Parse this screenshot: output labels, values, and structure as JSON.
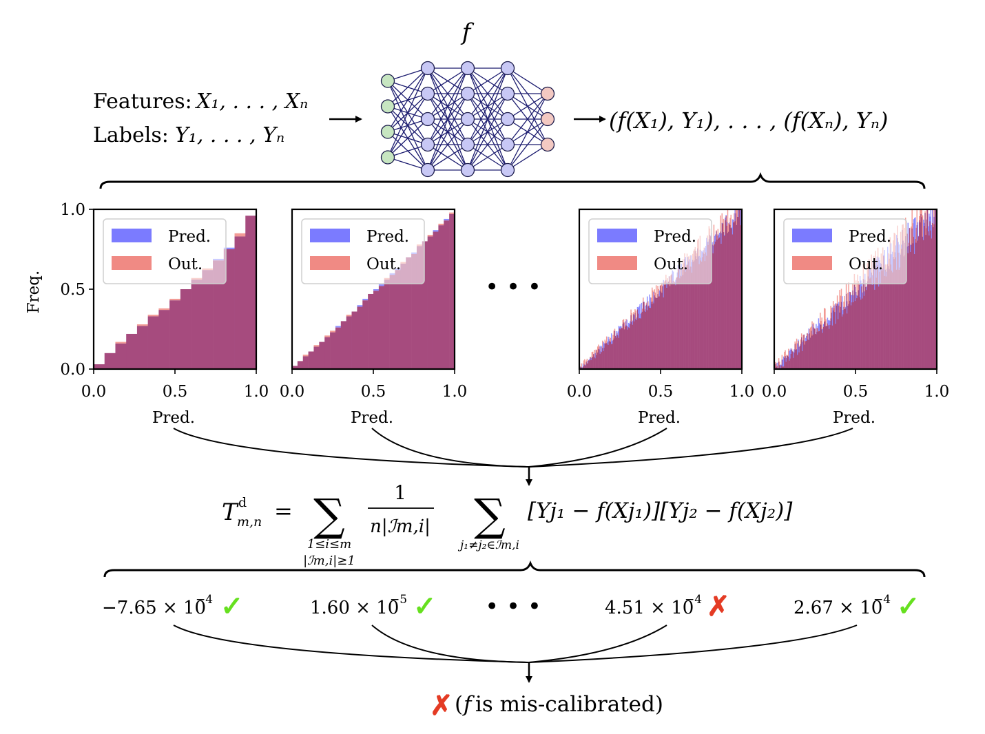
{
  "model_symbol": "f",
  "inputs": {
    "features_label": "Features:",
    "features_vars": "X₁, . . . , Xₙ",
    "labels_label": "Labels:",
    "labels_vars": "Y₁, . . . , Yₙ"
  },
  "outputs_text": "(f(X₁), Y₁), . . . , (f(Xₙ), Yₙ)",
  "ellipsis": "• • •",
  "network": {
    "layers": [
      4,
      5,
      5,
      5,
      3
    ],
    "colors": {
      "input": "#c7e6c1",
      "hidden": "#c8c8f5",
      "output": "#f3c9c2",
      "edge": "#1a1a6e"
    }
  },
  "colors": {
    "pred": "#7b7bff",
    "out": "#f08a84",
    "overlap": "#a64b7e",
    "check": "#66e01f",
    "cross": "#e43b24"
  },
  "chart_data": [
    {
      "type": "bar",
      "ylabel": "Freq.",
      "xlabel": "Pred.",
      "xlim": [
        0,
        1
      ],
      "ylim": [
        0,
        1
      ],
      "xticks": [
        "0.0",
        "0.5",
        "1.0"
      ],
      "yticks": [
        "0.0",
        "0.5",
        "1.0"
      ],
      "legend": [
        "Pred.",
        "Out."
      ],
      "bins": 15,
      "series": [
        {
          "name": "Pred.",
          "values": [
            0.03,
            0.1,
            0.16,
            0.22,
            0.27,
            0.33,
            0.37,
            0.43,
            0.5,
            0.56,
            0.62,
            0.69,
            0.76,
            0.83,
            0.96
          ]
        },
        {
          "name": "Out.",
          "values": [
            0.03,
            0.1,
            0.17,
            0.22,
            0.28,
            0.34,
            0.38,
            0.44,
            0.5,
            0.57,
            0.63,
            0.68,
            0.75,
            0.85,
            0.96
          ]
        }
      ]
    },
    {
      "type": "bar",
      "ylabel": "",
      "xlabel": "Pred.",
      "xlim": [
        0,
        1
      ],
      "ylim": [
        0,
        1
      ],
      "xticks": [
        "0.0",
        "0.5",
        "1.0"
      ],
      "yticks": [],
      "legend": [
        "Pred.",
        "Out."
      ],
      "bins": 30,
      "series": [
        {
          "name": "Pred.",
          "values": [
            0.02,
            0.05,
            0.08,
            0.11,
            0.14,
            0.17,
            0.2,
            0.23,
            0.27,
            0.3,
            0.33,
            0.36,
            0.4,
            0.44,
            0.47,
            0.5,
            0.53,
            0.56,
            0.6,
            0.63,
            0.66,
            0.7,
            0.73,
            0.77,
            0.8,
            0.83,
            0.87,
            0.9,
            0.94,
            0.97
          ]
        },
        {
          "name": "Out.",
          "values": [
            0.02,
            0.05,
            0.09,
            0.11,
            0.15,
            0.17,
            0.21,
            0.24,
            0.26,
            0.3,
            0.34,
            0.36,
            0.39,
            0.43,
            0.47,
            0.49,
            0.52,
            0.57,
            0.59,
            0.62,
            0.67,
            0.7,
            0.72,
            0.78,
            0.8,
            0.84,
            0.86,
            0.91,
            0.93,
            0.98
          ]
        }
      ]
    },
    {
      "type": "bar",
      "ylabel": "",
      "xlabel": "Pred.",
      "xlim": [
        0,
        1
      ],
      "ylim": [
        0,
        1
      ],
      "xticks": [
        "0.0",
        "0.5",
        "1.0"
      ],
      "yticks": [],
      "legend": [
        "Pred.",
        "Out."
      ],
      "bins": 200,
      "noise": 0.09,
      "note": "diagonal histogram, per-bin frequency ≈ bin center with noise"
    },
    {
      "type": "bar",
      "ylabel": "",
      "xlabel": "Pred.",
      "xlim": [
        0,
        1
      ],
      "ylim": [
        0,
        1
      ],
      "xticks": [
        "0.0",
        "0.5",
        "1.0"
      ],
      "yticks": [],
      "legend": [
        "Pred.",
        "Out."
      ],
      "bins": 200,
      "noise": 0.14,
      "note": "diagonal histogram, per-bin frequency ≈ bin center with larger noise"
    }
  ],
  "statistic": {
    "lhs": "T",
    "lhs_sup": "d",
    "lhs_sub": "m,n",
    "equals": "=",
    "sum1_under_1": "1≤i≤m",
    "sum1_under_2": "|ℐm,i|≥1",
    "frac_num": "1",
    "frac_den": "n|ℐm,i|",
    "sum2_under": "j₁≠j₂∈ℐm,i",
    "term": "[Yj₁ − f(Xj₁)][Yj₂ − f(Xj₂)]"
  },
  "results": [
    {
      "mantissa": "−7.65 × 10",
      "exponent": "−4",
      "mark": "✓"
    },
    {
      "mantissa": "1.60 × 10",
      "exponent": "−5",
      "mark": "✓"
    },
    {
      "mantissa": "4.51 × 10",
      "exponent": "−4",
      "mark": "✗"
    },
    {
      "mantissa": "2.67 × 10",
      "exponent": "−4",
      "mark": "✓"
    }
  ],
  "conclusion": {
    "mark": "✗",
    "text_open": "(",
    "symbol": "f",
    "text_rest": " is mis-calibrated)"
  }
}
